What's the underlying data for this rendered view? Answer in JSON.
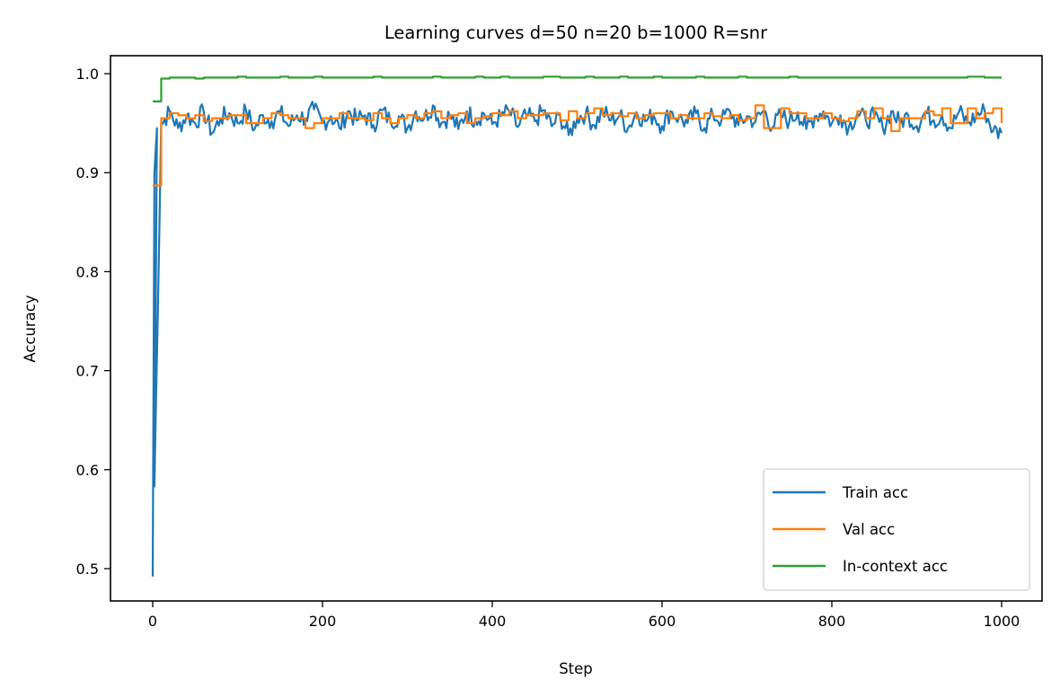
{
  "chart_data": {
    "type": "line",
    "title": "Learning curves d=50 n=20 b=1000 R=snr",
    "xlabel": "Step",
    "ylabel": "Accuracy",
    "xlim": [
      -50,
      1050
    ],
    "ylim": [
      0.469,
      1.024
    ],
    "xticks": [
      0,
      200,
      400,
      600,
      800,
      1000
    ],
    "xtick_labels": [
      "0",
      "200",
      "400",
      "600",
      "800",
      "1000"
    ],
    "yticks": [
      0.5,
      0.6,
      0.7,
      0.8,
      0.9,
      1.0
    ],
    "ytick_labels": [
      "0.5",
      "0.6",
      "0.7",
      "0.8",
      "0.9",
      "1.0"
    ],
    "grid": false,
    "legend_position": "lower right",
    "x": [
      0,
      10,
      20,
      30,
      40,
      50,
      60,
      70,
      80,
      90,
      100,
      110,
      120,
      130,
      140,
      150,
      160,
      170,
      180,
      190,
      200,
      210,
      220,
      230,
      240,
      250,
      260,
      270,
      280,
      290,
      300,
      310,
      320,
      330,
      340,
      350,
      360,
      370,
      380,
      390,
      400,
      410,
      420,
      430,
      440,
      450,
      460,
      470,
      480,
      490,
      500,
      510,
      520,
      530,
      540,
      550,
      560,
      570,
      580,
      590,
      600,
      610,
      620,
      630,
      640,
      650,
      660,
      670,
      680,
      690,
      700,
      710,
      720,
      730,
      740,
      750,
      760,
      770,
      780,
      790,
      800,
      810,
      820,
      830,
      840,
      850,
      860,
      870,
      880,
      890,
      900,
      910,
      920,
      930,
      940,
      950,
      960,
      970,
      980,
      990,
      1000
    ],
    "series": [
      {
        "name": "Train acc",
        "color": "#1f77b4",
        "values": [
          0.492,
          0.948,
          0.962,
          0.945,
          0.958,
          0.95,
          0.962,
          0.94,
          0.955,
          0.96,
          0.95,
          0.963,
          0.944,
          0.958,
          0.952,
          0.961,
          0.947,
          0.958,
          0.955,
          0.964,
          0.95,
          0.957,
          0.945,
          0.962,
          0.953,
          0.958,
          0.948,
          0.963,
          0.952,
          0.957,
          0.945,
          0.962,
          0.955,
          0.968,
          0.95,
          0.958,
          0.944,
          0.962,
          0.953,
          0.96,
          0.949,
          0.957,
          0.962,
          0.946,
          0.958,
          0.952,
          0.963,
          0.947,
          0.957,
          0.938,
          0.955,
          0.96,
          0.948,
          0.962,
          0.953,
          0.958,
          0.945,
          0.961,
          0.952,
          0.958,
          0.947,
          0.962,
          0.955,
          0.95,
          0.96,
          0.945,
          0.958,
          0.953,
          0.962,
          0.948,
          0.957,
          0.951,
          0.963,
          0.946,
          0.958,
          0.952,
          0.961,
          0.944,
          0.957,
          0.962,
          0.95,
          0.958,
          0.946,
          0.96,
          0.953,
          0.957,
          0.945,
          0.962,
          0.95,
          0.958,
          0.947,
          0.961,
          0.953,
          0.958,
          0.945,
          0.962,
          0.95,
          0.957,
          0.963,
          0.942,
          0.94
        ]
      },
      {
        "name": "Val acc",
        "color": "#ff7f0e",
        "values": [
          0.887,
          0.955,
          0.96,
          0.958,
          0.955,
          0.958,
          0.952,
          0.955,
          0.955,
          0.958,
          0.958,
          0.95,
          0.95,
          0.955,
          0.96,
          0.958,
          0.955,
          0.955,
          0.945,
          0.95,
          0.955,
          0.955,
          0.96,
          0.955,
          0.955,
          0.953,
          0.96,
          0.955,
          0.95,
          0.955,
          0.958,
          0.955,
          0.96,
          0.962,
          0.955,
          0.958,
          0.96,
          0.95,
          0.955,
          0.957,
          0.96,
          0.958,
          0.962,
          0.955,
          0.958,
          0.958,
          0.96,
          0.96,
          0.953,
          0.962,
          0.955,
          0.96,
          0.965,
          0.958,
          0.96,
          0.957,
          0.96,
          0.955,
          0.958,
          0.96,
          0.96,
          0.955,
          0.958,
          0.955,
          0.955,
          0.96,
          0.957,
          0.955,
          0.958,
          0.953,
          0.955,
          0.968,
          0.945,
          0.945,
          0.965,
          0.96,
          0.96,
          0.955,
          0.955,
          0.96,
          0.955,
          0.952,
          0.955,
          0.962,
          0.955,
          0.965,
          0.955,
          0.942,
          0.955,
          0.955,
          0.955,
          0.962,
          0.958,
          0.965,
          0.95,
          0.95,
          0.965,
          0.955,
          0.96,
          0.965,
          0.95
        ]
      },
      {
        "name": "In-context acc",
        "color": "#2ca02c",
        "values": [
          0.972,
          0.995,
          0.996,
          0.996,
          0.996,
          0.995,
          0.996,
          0.996,
          0.996,
          0.996,
          0.997,
          0.996,
          0.996,
          0.996,
          0.996,
          0.997,
          0.996,
          0.996,
          0.996,
          0.997,
          0.996,
          0.996,
          0.996,
          0.996,
          0.996,
          0.996,
          0.997,
          0.996,
          0.996,
          0.996,
          0.996,
          0.996,
          0.996,
          0.997,
          0.996,
          0.996,
          0.996,
          0.996,
          0.997,
          0.996,
          0.996,
          0.997,
          0.996,
          0.996,
          0.996,
          0.996,
          0.997,
          0.997,
          0.996,
          0.996,
          0.996,
          0.997,
          0.996,
          0.996,
          0.996,
          0.997,
          0.996,
          0.996,
          0.996,
          0.997,
          0.996,
          0.996,
          0.996,
          0.996,
          0.997,
          0.996,
          0.996,
          0.996,
          0.996,
          0.997,
          0.996,
          0.996,
          0.996,
          0.996,
          0.996,
          0.997,
          0.996,
          0.996,
          0.996,
          0.996,
          0.996,
          0.996,
          0.996,
          0.996,
          0.996,
          0.996,
          0.996,
          0.996,
          0.996,
          0.996,
          0.996,
          0.996,
          0.996,
          0.996,
          0.996,
          0.996,
          0.997,
          0.997,
          0.996,
          0.996,
          0.996
        ]
      }
    ]
  }
}
